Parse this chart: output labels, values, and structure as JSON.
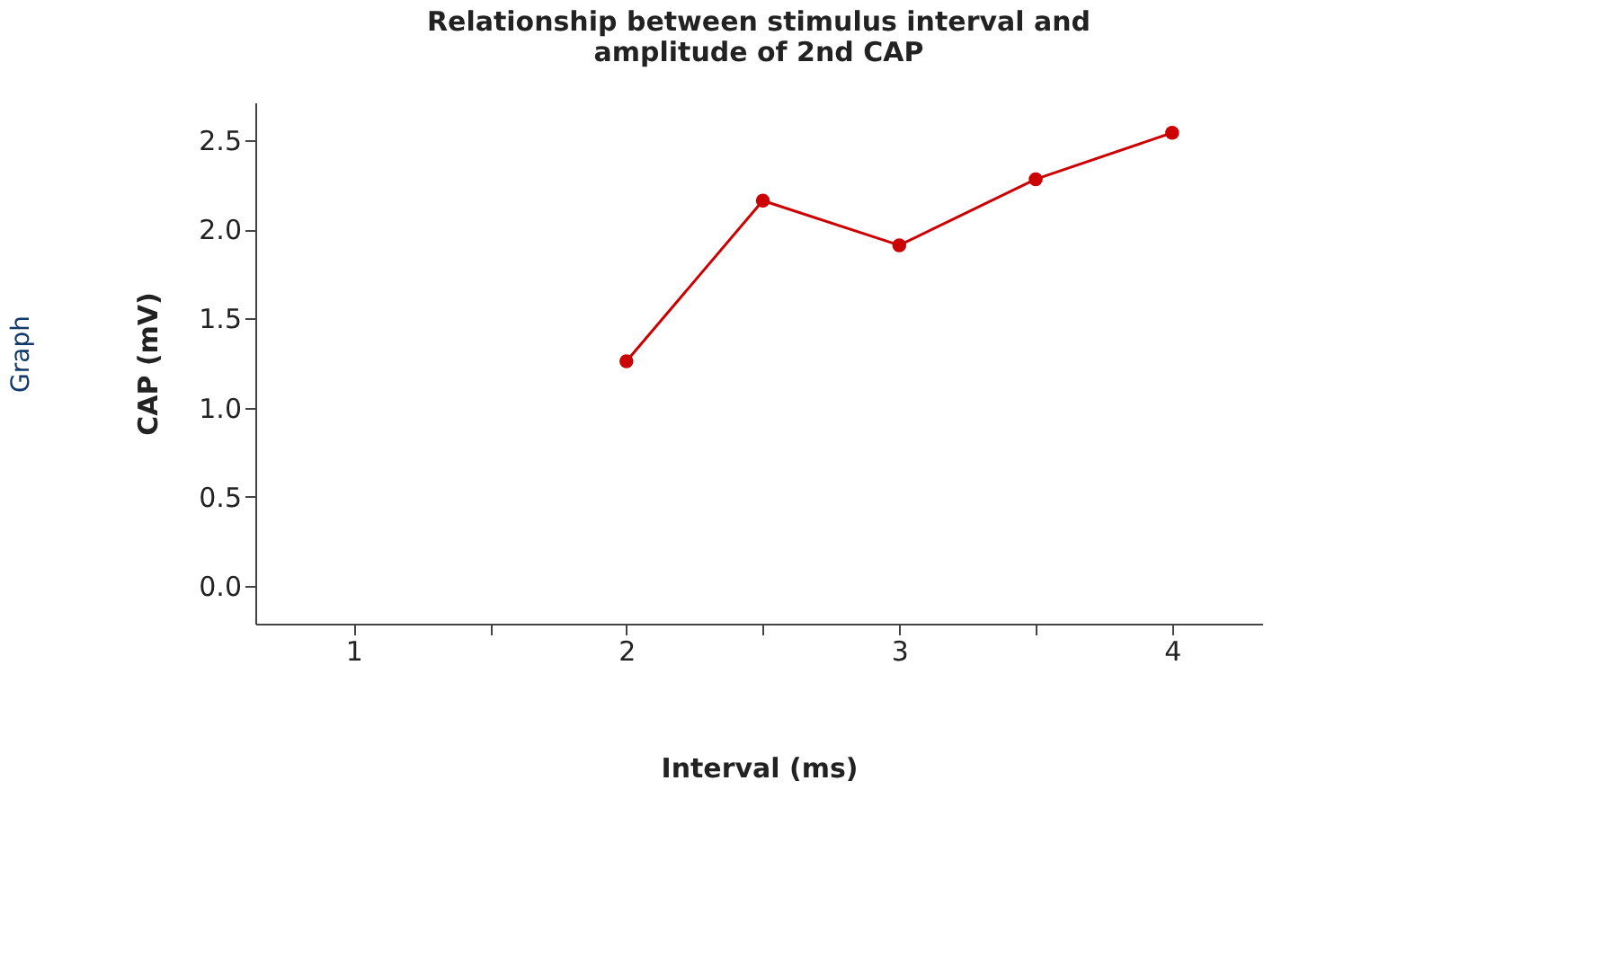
{
  "chart_data": {
    "type": "line",
    "title": [
      "Relationship between stimulus interval and",
      "amplitude of 2nd CAP"
    ],
    "xlabel": "Interval (ms)",
    "ylabel": "CAP (mV)",
    "annotations": [
      "Graph"
    ],
    "x": [
      2,
      2.5,
      3,
      3.5,
      4
    ],
    "series": [
      {
        "color": "#cc0000",
        "values": [
          1.26,
          2.16,
          1.91,
          2.28,
          2.54
        ]
      }
    ],
    "xlim": [
      0.64,
      4.33
    ],
    "ylim": [
      -0.21,
      2.71
    ],
    "xticks": [
      1,
      {
        "value": 1.5,
        "label": null
      },
      2,
      {
        "value": 2.5,
        "label": null
      },
      3,
      {
        "value": 3.5,
        "label": null
      },
      4
    ],
    "yticks": [
      {
        "value": 0,
        "label": "0.0"
      },
      {
        "value": 0.5,
        "label": "0.5"
      },
      {
        "value": 1,
        "label": "1.0"
      },
      {
        "value": 1.5,
        "label": "1.5"
      },
      {
        "value": 2,
        "label": "2.0"
      },
      {
        "value": 2.5,
        "label": "2.5"
      }
    ],
    "marker": "circle",
    "line_style": "solid",
    "grid": false
  }
}
